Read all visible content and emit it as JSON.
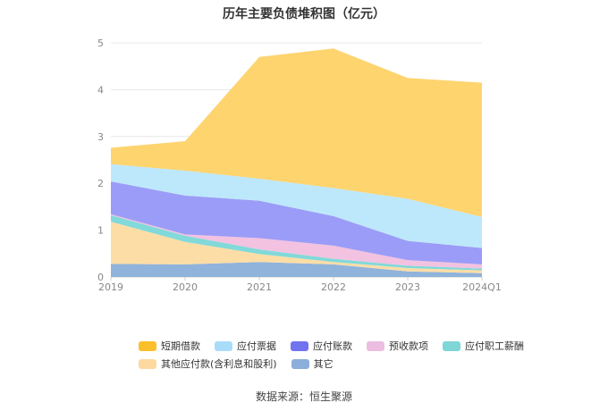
{
  "chart_data": {
    "type": "area",
    "stacked": true,
    "title": "历年主要负债堆积图（亿元）",
    "x": [
      "2019",
      "2020",
      "2021",
      "2022",
      "2023",
      "2024Q1"
    ],
    "ylim": [
      0,
      5
    ],
    "yticks": [
      0,
      1,
      2,
      3,
      4,
      5
    ],
    "grid": true,
    "legend_position": "bottom",
    "series": [
      {
        "name": "其它",
        "color": "#8fb3db",
        "values": [
          0.28,
          0.27,
          0.32,
          0.27,
          0.12,
          0.08
        ]
      },
      {
        "name": "其他应付款(含利息和股利)",
        "color": "#fddda6",
        "values": [
          0.9,
          0.48,
          0.17,
          0.05,
          0.07,
          0.06
        ]
      },
      {
        "name": "应付职工薪酬",
        "color": "#82d9d9",
        "values": [
          0.14,
          0.13,
          0.1,
          0.07,
          0.05,
          0.04
        ]
      },
      {
        "name": "预收款项",
        "color": "#f2c2e0",
        "values": [
          0.02,
          0.03,
          0.24,
          0.28,
          0.12,
          0.09
        ]
      },
      {
        "name": "应付账款",
        "color": "#9b9cf7",
        "values": [
          0.7,
          0.83,
          0.8,
          0.63,
          0.41,
          0.35
        ]
      },
      {
        "name": "应付票据",
        "color": "#bde8fb",
        "values": [
          0.37,
          0.53,
          0.47,
          0.6,
          0.9,
          0.66
        ]
      },
      {
        "name": "短期借款",
        "color": "#fed46f",
        "values": [
          0.35,
          0.63,
          2.6,
          2.98,
          2.58,
          2.87
        ]
      }
    ]
  },
  "legend": {
    "row1": [
      {
        "label": "短期借款",
        "color": "#fbbf2b"
      },
      {
        "label": "应付票据",
        "color": "#a9dcfa"
      },
      {
        "label": "应付账款",
        "color": "#7173ef"
      },
      {
        "label": "预收款项",
        "color": "#ecbde0"
      },
      {
        "label": "应付职工薪酬",
        "color": "#7fd6d6"
      }
    ],
    "row2": [
      {
        "label": "其他应付款(含利息和股利)",
        "color": "#fdd9a0"
      },
      {
        "label": "其它",
        "color": "#8caedb"
      }
    ]
  },
  "source": "数据来源：恒生聚源"
}
